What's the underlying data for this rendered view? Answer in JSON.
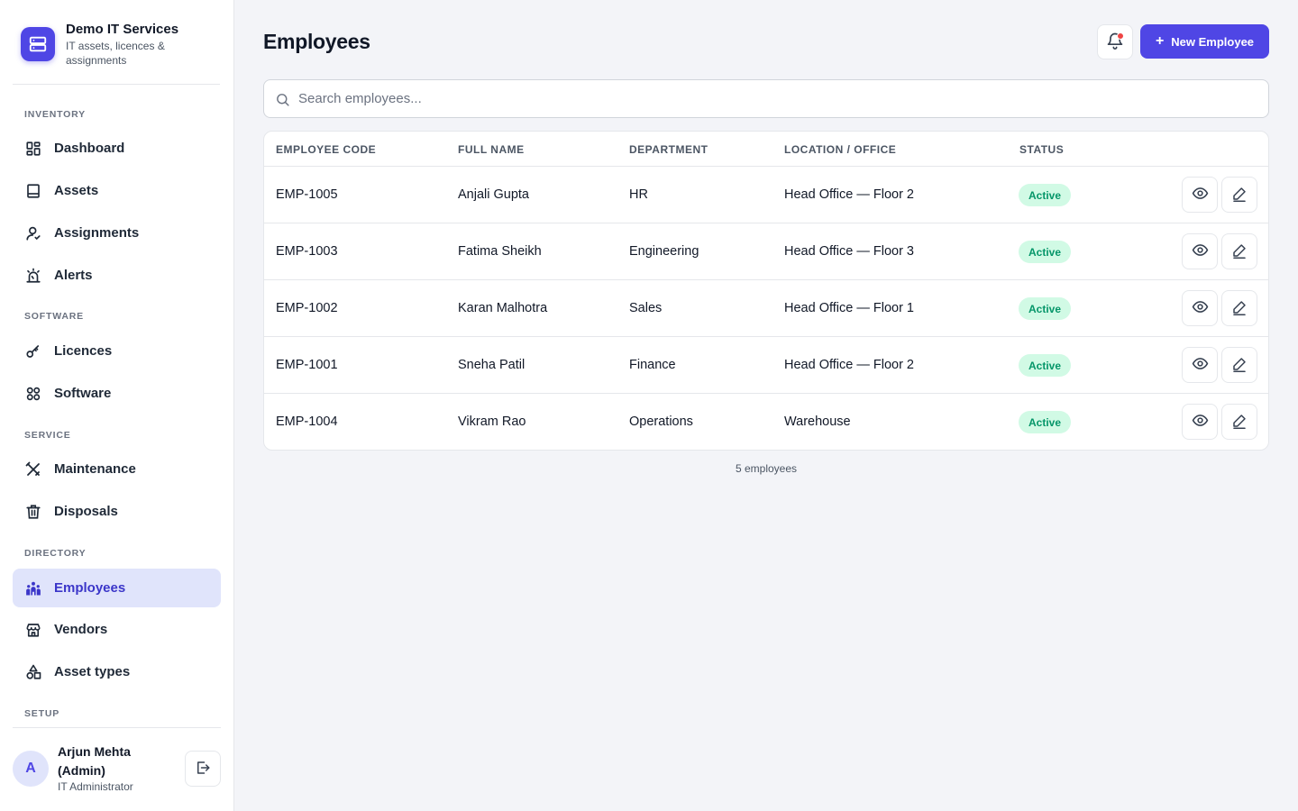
{
  "brand": {
    "name": "Demo IT Services",
    "subtitle": "IT assets, licences & assignments",
    "logo_icon": "server-stack-icon"
  },
  "sidebar": {
    "sections": [
      {
        "label": "INVENTORY"
      },
      {
        "label": "SOFTWARE"
      },
      {
        "label": "SERVICE"
      },
      {
        "label": "DIRECTORY"
      },
      {
        "label": "SETUP"
      }
    ],
    "items": [
      {
        "label": "Dashboard",
        "icon": "dashboard-grid-icon"
      },
      {
        "label": "Assets",
        "icon": "laptop-icon"
      },
      {
        "label": "Assignments",
        "icon": "user-icon"
      },
      {
        "label": "Alerts",
        "icon": "alarm-icon"
      },
      {
        "label": "Licences",
        "icon": "key-icon"
      },
      {
        "label": "Software",
        "icon": "apps-icon"
      },
      {
        "label": "Maintenance",
        "icon": "tools-icon"
      },
      {
        "label": "Disposals",
        "icon": "trash-icon"
      },
      {
        "label": "Employees",
        "icon": "users-group-icon",
        "active": true
      },
      {
        "label": "Vendors",
        "icon": "store-icon"
      },
      {
        "label": "Asset types",
        "icon": "shapes-icon"
      }
    ]
  },
  "user": {
    "initial": "A",
    "name": "Arjun Mehta (Admin)",
    "role": "IT Administrator"
  },
  "header": {
    "title": "Employees",
    "new_button_label": "New Employee",
    "bell_icon": "bell-icon"
  },
  "search": {
    "placeholder": "Search employees...",
    "value": ""
  },
  "table": {
    "columns": [
      "EMPLOYEE CODE",
      "FULL NAME",
      "DEPARTMENT",
      "LOCATION / OFFICE",
      "STATUS"
    ],
    "rows": [
      {
        "code": "EMP-1005",
        "name": "Anjali Gupta",
        "department": "HR",
        "location": "Head Office — Floor 2",
        "status": "Active"
      },
      {
        "code": "EMP-1003",
        "name": "Fatima Sheikh",
        "department": "Engineering",
        "location": "Head Office — Floor 3",
        "status": "Active"
      },
      {
        "code": "EMP-1002",
        "name": "Karan Malhotra",
        "department": "Sales",
        "location": "Head Office — Floor 1",
        "status": "Active"
      },
      {
        "code": "EMP-1001",
        "name": "Sneha Patil",
        "department": "Finance",
        "location": "Head Office — Floor 2",
        "status": "Active"
      },
      {
        "code": "EMP-1004",
        "name": "Vikram Rao",
        "department": "Operations",
        "location": "Warehouse",
        "status": "Active"
      }
    ]
  },
  "footer": {
    "count_text": "5 employees"
  },
  "colors": {
    "accent": "#4f46e5",
    "active_nav_bg": "#e0e4fb",
    "status_active_bg": "#d1fae5",
    "status_active_text": "#059669",
    "notification_dot": "#ef4444"
  }
}
